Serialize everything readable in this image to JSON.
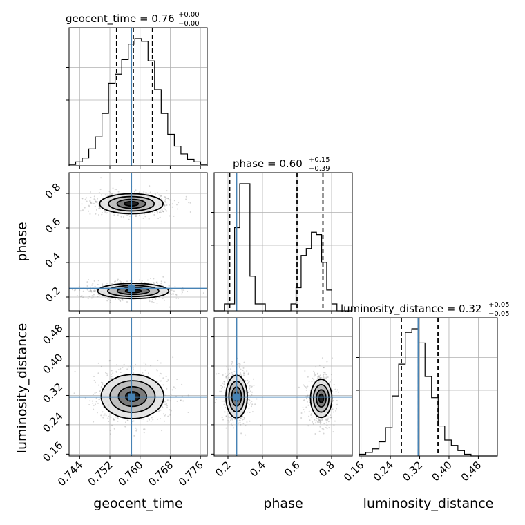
{
  "chart_data": {
    "type": "corner",
    "params": [
      "geocent_time",
      "phase",
      "luminosity_distance"
    ],
    "grid": true,
    "truth_color": "#4682b4",
    "truths": {
      "geocent_time": 0.7577,
      "phase": 0.25,
      "luminosity_distance": 0.316
    },
    "axes": {
      "geocent_time": {
        "lim": [
          0.7412,
          0.7778
        ],
        "ticks": [
          "0.744",
          "0.752",
          "0.760",
          "0.768",
          "0.776"
        ]
      },
      "phase": {
        "lim": [
          0.12,
          0.92
        ],
        "ticks": [
          "0.2",
          "0.4",
          "0.6",
          "0.8"
        ]
      },
      "luminosity_distance": {
        "lim": [
          0.155,
          0.532
        ],
        "ticks": [
          "0.16",
          "0.24",
          "0.32",
          "0.40",
          "0.48"
        ]
      }
    },
    "titles": [
      {
        "param": "geocent_time",
        "main": "geocent_time = 0.76",
        "sup": "+0.00",
        "sub": "−0.00"
      },
      {
        "param": "phase",
        "main": "phase = 0.60",
        "sup": "+0.15",
        "sub": "−0.39"
      },
      {
        "param": "luminosity_distance",
        "main": "luminosity_distance = 0.32",
        "sup": "+0.05",
        "sub": "−0.05"
      }
    ],
    "quantiles": {
      "geocent_time": [
        0.7538,
        0.7582,
        0.7633
      ],
      "phase": [
        0.21,
        0.6,
        0.75
      ],
      "luminosity_distance": [
        0.27,
        0.316,
        0.37
      ]
    },
    "histograms": {
      "geocent_time": {
        "range": [
          0.7412,
          0.7778
        ],
        "counts": [
          1,
          3,
          6,
          13,
          22,
          40,
          63,
          70,
          81,
          93,
          97,
          95,
          80,
          58,
          40,
          24,
          15,
          9,
          5,
          3,
          1
        ]
      },
      "phase": {
        "range": [
          0.12,
          0.92
        ],
        "counts": [
          0,
          0,
          3,
          3,
          36,
          55,
          55,
          15,
          3,
          3,
          0,
          0,
          0,
          0,
          0,
          3,
          10,
          24,
          27,
          34,
          33,
          21,
          9,
          3,
          0,
          0,
          0
        ]
      },
      "luminosity_distance": {
        "range": [
          0.155,
          0.532
        ],
        "counts": [
          1,
          2,
          4,
          8,
          16,
          34,
          52,
          70,
          72,
          64,
          45,
          33,
          17,
          9,
          6,
          3,
          1,
          0,
          0,
          0,
          0
        ]
      }
    },
    "blobs_2d": {
      "geocent_time_vs_phase": [
        {
          "cx": 0.7577,
          "cy": 0.74,
          "rx": 0.0084,
          "ry": 0.058,
          "weight": 0.7
        },
        {
          "cx": 0.7582,
          "cy": 0.235,
          "rx": 0.0094,
          "ry": 0.044,
          "weight": 0.8
        }
      ],
      "geocent_time_vs_luminosity_distance": [
        {
          "cx": 0.758,
          "cy": 0.317,
          "rx": 0.0083,
          "ry": 0.06,
          "weight": 1.0
        }
      ],
      "phase_vs_luminosity_distance": [
        {
          "cx": 0.25,
          "cy": 0.317,
          "rx": 0.062,
          "ry": 0.058,
          "weight": 0.95
        },
        {
          "cx": 0.74,
          "cy": 0.312,
          "rx": 0.062,
          "ry": 0.052,
          "weight": 0.9
        }
      ]
    }
  }
}
